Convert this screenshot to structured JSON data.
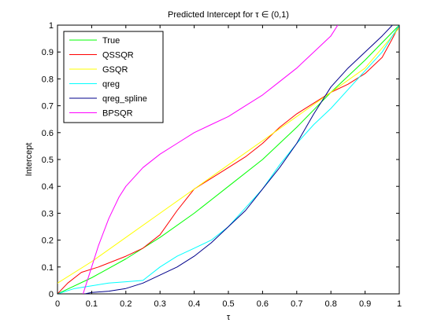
{
  "chart_data": {
    "type": "line",
    "title": "Predicted Intercept for τ ∈ (0,1)",
    "xlabel": "τ",
    "ylabel": "Intercept",
    "xlim": [
      0,
      1
    ],
    "ylim": [
      0,
      1
    ],
    "xticks": [
      0,
      0.1,
      0.2,
      0.3,
      0.4,
      0.5,
      0.6,
      0.7,
      0.8,
      0.9,
      1
    ],
    "yticks": [
      0,
      0.1,
      0.2,
      0.3,
      0.4,
      0.5,
      0.6,
      0.7,
      0.8,
      0.9,
      1
    ],
    "xtick_labels": [
      "0",
      "0.1",
      "0.2",
      "0.3",
      "0.4",
      "0.5",
      "0.6",
      "0.7",
      "0.8",
      "0.9",
      "1"
    ],
    "ytick_labels": [
      "0",
      "0.1",
      "0.2",
      "0.3",
      "0.4",
      "0.5",
      "0.6",
      "0.7",
      "0.8",
      "0.9",
      "1"
    ],
    "grid": false,
    "legend_position": "top-left",
    "series": [
      {
        "name": "True",
        "color": "#00ff00",
        "points": [
          [
            0,
            0
          ],
          [
            0.1,
            0.06
          ],
          [
            0.2,
            0.13
          ],
          [
            0.3,
            0.21
          ],
          [
            0.4,
            0.3
          ],
          [
            0.5,
            0.4
          ],
          [
            0.6,
            0.5
          ],
          [
            0.7,
            0.62
          ],
          [
            0.8,
            0.75
          ],
          [
            0.9,
            0.87
          ],
          [
            1,
            1
          ]
        ]
      },
      {
        "name": "QSSQR",
        "color": "#ff0000",
        "points": [
          [
            0,
            0
          ],
          [
            0.03,
            0.04
          ],
          [
            0.07,
            0.08
          ],
          [
            0.12,
            0.1
          ],
          [
            0.2,
            0.14
          ],
          [
            0.25,
            0.17
          ],
          [
            0.3,
            0.22
          ],
          [
            0.35,
            0.31
          ],
          [
            0.4,
            0.39
          ],
          [
            0.45,
            0.43
          ],
          [
            0.5,
            0.47
          ],
          [
            0.55,
            0.51
          ],
          [
            0.6,
            0.56
          ],
          [
            0.65,
            0.62
          ],
          [
            0.7,
            0.67
          ],
          [
            0.75,
            0.71
          ],
          [
            0.8,
            0.75
          ],
          [
            0.85,
            0.78
          ],
          [
            0.9,
            0.82
          ],
          [
            0.95,
            0.88
          ],
          [
            0.98,
            0.95
          ],
          [
            1,
            1
          ]
        ]
      },
      {
        "name": "GSQR",
        "color": "#ffff00",
        "points": [
          [
            0,
            0.04
          ],
          [
            0.1,
            0.12
          ],
          [
            0.2,
            0.21
          ],
          [
            0.3,
            0.3
          ],
          [
            0.4,
            0.39
          ],
          [
            0.5,
            0.48
          ],
          [
            0.6,
            0.57
          ],
          [
            0.7,
            0.66
          ],
          [
            0.8,
            0.75
          ],
          [
            0.9,
            0.84
          ],
          [
            1,
            0.99
          ]
        ]
      },
      {
        "name": "qreg",
        "color": "#00ffff",
        "points": [
          [
            0,
            0
          ],
          [
            0.05,
            0.02
          ],
          [
            0.1,
            0.03
          ],
          [
            0.15,
            0.04
          ],
          [
            0.2,
            0.045
          ],
          [
            0.25,
            0.05
          ],
          [
            0.3,
            0.1
          ],
          [
            0.35,
            0.14
          ],
          [
            0.4,
            0.17
          ],
          [
            0.45,
            0.2
          ],
          [
            0.5,
            0.25
          ],
          [
            0.55,
            0.32
          ],
          [
            0.6,
            0.39
          ],
          [
            0.65,
            0.48
          ],
          [
            0.7,
            0.56
          ],
          [
            0.75,
            0.63
          ],
          [
            0.8,
            0.69
          ],
          [
            0.85,
            0.76
          ],
          [
            0.9,
            0.83
          ],
          [
            0.95,
            0.9
          ],
          [
            1,
            1
          ]
        ]
      },
      {
        "name": "qreg_spline",
        "color": "#00008b",
        "points": [
          [
            0.08,
            0
          ],
          [
            0.1,
            0.005
          ],
          [
            0.15,
            0.01
          ],
          [
            0.2,
            0.02
          ],
          [
            0.25,
            0.04
          ],
          [
            0.3,
            0.07
          ],
          [
            0.35,
            0.1
          ],
          [
            0.4,
            0.14
          ],
          [
            0.45,
            0.19
          ],
          [
            0.5,
            0.25
          ],
          [
            0.55,
            0.31
          ],
          [
            0.6,
            0.39
          ],
          [
            0.65,
            0.47
          ],
          [
            0.7,
            0.56
          ],
          [
            0.75,
            0.67
          ],
          [
            0.8,
            0.77
          ],
          [
            0.85,
            0.84
          ],
          [
            0.9,
            0.9
          ],
          [
            0.95,
            0.96
          ],
          [
            0.98,
            1
          ]
        ]
      },
      {
        "name": "BPSQR",
        "color": "#ff00ff",
        "points": [
          [
            0.075,
            0
          ],
          [
            0.1,
            0.1
          ],
          [
            0.12,
            0.18
          ],
          [
            0.15,
            0.28
          ],
          [
            0.18,
            0.36
          ],
          [
            0.2,
            0.4
          ],
          [
            0.25,
            0.47
          ],
          [
            0.3,
            0.52
          ],
          [
            0.35,
            0.56
          ],
          [
            0.4,
            0.6
          ],
          [
            0.45,
            0.63
          ],
          [
            0.5,
            0.66
          ],
          [
            0.55,
            0.7
          ],
          [
            0.6,
            0.74
          ],
          [
            0.65,
            0.79
          ],
          [
            0.7,
            0.84
          ],
          [
            0.75,
            0.9
          ],
          [
            0.8,
            0.96
          ],
          [
            0.82,
            1
          ]
        ]
      }
    ]
  }
}
